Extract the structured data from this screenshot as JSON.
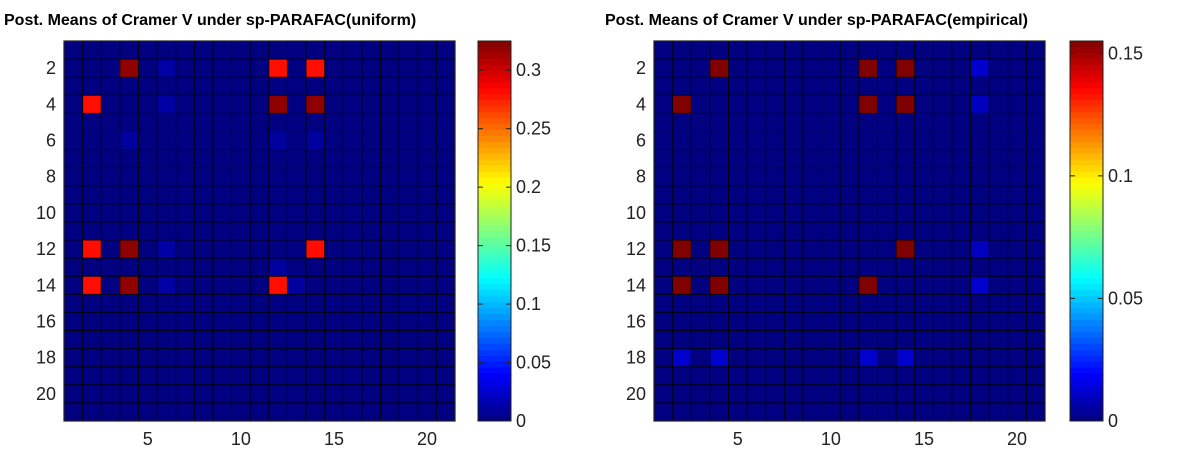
{
  "chart_data": [
    {
      "type": "heatmap",
      "title": "Post. Means of Cramer V under sp-PARAFAC(uniform)",
      "n": 21,
      "x_ticks": [
        5,
        10,
        15,
        20
      ],
      "y_ticks": [
        2,
        4,
        6,
        8,
        10,
        12,
        14,
        16,
        18,
        20
      ],
      "colorbar": {
        "min": 0,
        "max": 0.325,
        "ticks": [
          0,
          0.05,
          0.1,
          0.15,
          0.2,
          0.25,
          0.3
        ]
      },
      "base_value": 0.0,
      "cells": [
        {
          "row": 2,
          "col": 4,
          "value": 0.32
        },
        {
          "row": 2,
          "col": 12,
          "value": 0.28
        },
        {
          "row": 2,
          "col": 14,
          "value": 0.28
        },
        {
          "row": 2,
          "col": 6,
          "value": 0.012
        },
        {
          "row": 4,
          "col": 2,
          "value": 0.28
        },
        {
          "row": 4,
          "col": 12,
          "value": 0.32
        },
        {
          "row": 4,
          "col": 14,
          "value": 0.32
        },
        {
          "row": 4,
          "col": 6,
          "value": 0.012
        },
        {
          "row": 6,
          "col": 4,
          "value": 0.01
        },
        {
          "row": 6,
          "col": 12,
          "value": 0.01
        },
        {
          "row": 6,
          "col": 14,
          "value": 0.01
        },
        {
          "row": 12,
          "col": 2,
          "value": 0.28
        },
        {
          "row": 12,
          "col": 4,
          "value": 0.32
        },
        {
          "row": 12,
          "col": 14,
          "value": 0.28
        },
        {
          "row": 12,
          "col": 6,
          "value": 0.012
        },
        {
          "row": 14,
          "col": 2,
          "value": 0.28
        },
        {
          "row": 14,
          "col": 4,
          "value": 0.32
        },
        {
          "row": 14,
          "col": 12,
          "value": 0.28
        },
        {
          "row": 14,
          "col": 6,
          "value": 0.012
        },
        {
          "row": 14,
          "col": 13,
          "value": 0.01
        },
        {
          "row": 13,
          "col": 12,
          "value": 0.01
        }
      ]
    },
    {
      "type": "heatmap",
      "title": "Post. Means of Cramer V under sp-PARAFAC(empirical)",
      "n": 21,
      "x_ticks": [
        5,
        10,
        15,
        20
      ],
      "y_ticks": [
        2,
        4,
        6,
        8,
        10,
        12,
        14,
        16,
        18,
        20
      ],
      "colorbar": {
        "min": 0,
        "max": 0.155,
        "ticks": [
          0,
          0.05,
          0.1,
          0.15
        ]
      },
      "base_value": 0.0,
      "cells": [
        {
          "row": 2,
          "col": 4,
          "value": 0.155
        },
        {
          "row": 2,
          "col": 12,
          "value": 0.155
        },
        {
          "row": 2,
          "col": 14,
          "value": 0.155
        },
        {
          "row": 2,
          "col": 18,
          "value": 0.012
        },
        {
          "row": 4,
          "col": 2,
          "value": 0.155
        },
        {
          "row": 4,
          "col": 12,
          "value": 0.155
        },
        {
          "row": 4,
          "col": 14,
          "value": 0.155
        },
        {
          "row": 4,
          "col": 18,
          "value": 0.01
        },
        {
          "row": 12,
          "col": 2,
          "value": 0.155
        },
        {
          "row": 12,
          "col": 4,
          "value": 0.155
        },
        {
          "row": 12,
          "col": 14,
          "value": 0.155
        },
        {
          "row": 12,
          "col": 18,
          "value": 0.01
        },
        {
          "row": 14,
          "col": 2,
          "value": 0.155
        },
        {
          "row": 14,
          "col": 4,
          "value": 0.155
        },
        {
          "row": 14,
          "col": 12,
          "value": 0.155
        },
        {
          "row": 14,
          "col": 18,
          "value": 0.012
        },
        {
          "row": 18,
          "col": 2,
          "value": 0.012
        },
        {
          "row": 18,
          "col": 4,
          "value": 0.012
        },
        {
          "row": 18,
          "col": 12,
          "value": 0.012
        },
        {
          "row": 18,
          "col": 14,
          "value": 0.012
        }
      ]
    }
  ]
}
